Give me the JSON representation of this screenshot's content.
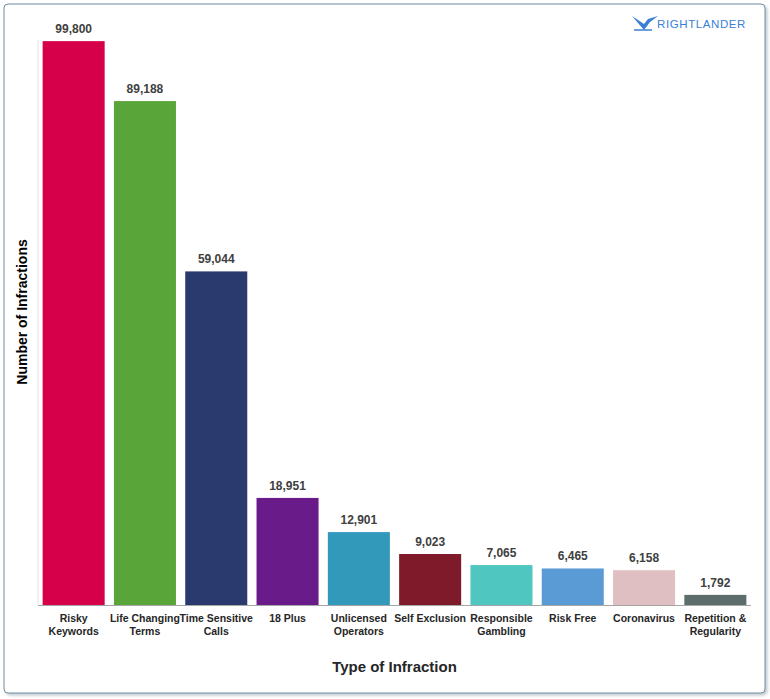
{
  "chart_data": {
    "type": "bar",
    "x_label": "Type of Infraction",
    "y_label": "Number of Infractions",
    "annotations": [
      "RIGHTLANDER"
    ],
    "categories": [
      "Risky Keywords",
      "Life Changing Terms",
      "Time Sensitive Calls",
      "18 Plus",
      "Unlicensed Operators",
      "Self Exclusion",
      "Responsible Gambling",
      "Risk Free",
      "Coronavirus",
      "Repetition & Regularity"
    ],
    "values": [
      99800,
      89188,
      59044,
      18951,
      12901,
      9023,
      7065,
      6465,
      6158,
      1792
    ],
    "value_labels": [
      "99,800",
      "89,188",
      "59,044",
      "18,951",
      "12,901",
      "9,023",
      "7,065",
      "6,465",
      "6,158",
      "1,792"
    ],
    "colors": [
      "#d6004a",
      "#5aa53a",
      "#2b3a6e",
      "#6a1b8a",
      "#3299bb",
      "#7e1a2a",
      "#4fc6bf",
      "#5b9bd5",
      "#e0bfc2",
      "#5d6d6b"
    ],
    "ylim": [
      0,
      100000
    ],
    "grid": false,
    "data_labels": true,
    "tick_labels": "x"
  }
}
